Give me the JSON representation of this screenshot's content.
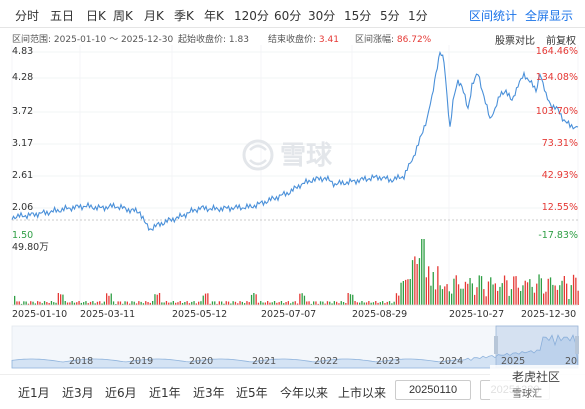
{
  "tabs": [
    "分时",
    "五日",
    "日K",
    "周K",
    "月K",
    "季K",
    "年K",
    "120分",
    "60分",
    "30分",
    "15分",
    "5分",
    "1分"
  ],
  "top_right": {
    "range_stats": "区间统计",
    "fullscreen": "全屏显示"
  },
  "info": {
    "range_label": "区间范围:",
    "range_value": "2025-01-10 ～ 2025-12-30",
    "start_label": "起始收盘价:",
    "start_value": "1.83",
    "end_label": "结束收盘价:",
    "end_value": "3.41",
    "change_label": "区间涨幅:",
    "change_value": "86.72%",
    "compare": "股票对比",
    "adjust": "前复权"
  },
  "y_left": [
    "4.83",
    "4.28",
    "3.72",
    "3.17",
    "2.61",
    "2.06",
    "1.50"
  ],
  "y_right": [
    "164.46%",
    "134.08%",
    "103.70%",
    "73.31%",
    "42.93%",
    "12.55%",
    "-17.83%"
  ],
  "volume_max": "49.80万",
  "x_labels": [
    "2025-01-10",
    "2025-03-11",
    "2025-05-12",
    "2025-07-07",
    "2025-08-29",
    "2025-10-27",
    "2025-12-30"
  ],
  "overview_years": [
    "2018",
    "2019",
    "2020",
    "2021",
    "2022",
    "2023",
    "2024",
    "2025",
    "20"
  ],
  "watermark": "雪球",
  "ranges": [
    "近1月",
    "近3月",
    "近6月",
    "近1年",
    "近3年",
    "近5年",
    "今年以来",
    "上市以来"
  ],
  "date_from": "20250110",
  "date_to": "20251230",
  "badge": {
    "name": "老虎社区",
    "sub": "雪球汇"
  },
  "colors": {
    "line": "#4a90d9",
    "up": "#e53935",
    "down": "#2e9e44",
    "accent": "#1a73e8"
  }
}
